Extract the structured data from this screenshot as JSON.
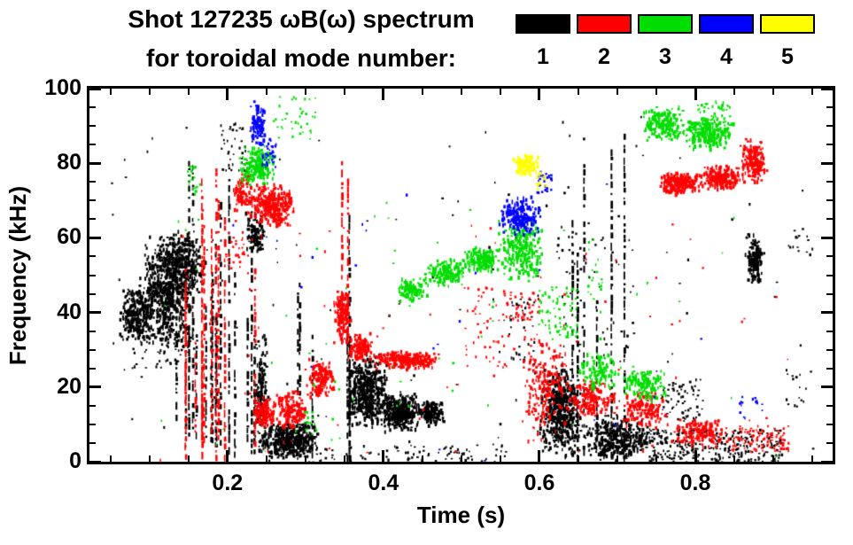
{
  "title": {
    "line1": "Shot 127235 ωB(ω) spectrum",
    "line2": "for toroidal mode number:"
  },
  "legend": {
    "items": [
      {
        "label": "1",
        "color": "#000000"
      },
      {
        "label": "2",
        "color": "#ff0000"
      },
      {
        "label": "3",
        "color": "#00dd00"
      },
      {
        "label": "4",
        "color": "#0000ff"
      },
      {
        "label": "5",
        "color": "#ffff00"
      }
    ]
  },
  "chart_data": {
    "type": "scatter",
    "subtype": "spectrogram-mode-scatter",
    "title": "Shot 127235 ωB(ω) spectrum for toroidal mode number 1-5",
    "xlabel": "Time (s)",
    "ylabel": "Frequency (kHz)",
    "xlim": [
      0.023,
      0.976
    ],
    "ylim": [
      0,
      100
    ],
    "xticks": [
      0.2,
      0.4,
      0.6,
      0.8
    ],
    "yticks": [
      0,
      20,
      40,
      60,
      80,
      100
    ],
    "xminor_step": 0.05,
    "yminor_step": 5,
    "grid": false,
    "legend_position": "top-right",
    "feature_format": "[type, t_start_s, t_end_s, f_low_kHz, f_high_kHz, n_points]; types: blob=center-weighted cluster, spray=uniform scatter, vlines=broadband vertical streaks",
    "series": [
      {
        "name": "n=1",
        "mode": 1,
        "color": "#000000",
        "features": [
          [
            "blob",
            0.06,
            0.105,
            32,
            48,
            260
          ],
          [
            "blob",
            0.085,
            0.155,
            30,
            62,
            560
          ],
          [
            "blob",
            0.105,
            0.175,
            44,
            63,
            300
          ],
          [
            "spray",
            0.075,
            0.16,
            25,
            36,
            80
          ],
          [
            "vlines",
            0.125,
            0.235,
            2,
            88,
            16
          ],
          [
            "spray",
            0.19,
            0.228,
            78,
            91,
            45
          ],
          [
            "blob",
            0.222,
            0.247,
            55,
            68,
            90
          ],
          [
            "blob",
            0.232,
            0.252,
            2,
            36,
            160
          ],
          [
            "blob",
            0.238,
            0.315,
            1,
            11,
            430
          ],
          [
            "vlines",
            0.283,
            0.308,
            0,
            64,
            3
          ],
          [
            "vlines",
            0.343,
            0.356,
            0,
            99,
            3
          ],
          [
            "blob",
            0.35,
            0.405,
            9,
            30,
            480
          ],
          [
            "blob",
            0.395,
            0.445,
            8,
            19,
            380
          ],
          [
            "blob",
            0.44,
            0.478,
            10,
            17,
            170
          ],
          [
            "spray",
            0.3,
            0.56,
            0,
            5,
            90
          ],
          [
            "spray",
            0.56,
            0.6,
            26,
            45,
            40
          ],
          [
            "vlines",
            0.6,
            0.72,
            0,
            95,
            6
          ],
          [
            "blob",
            0.598,
            0.655,
            1,
            27,
            500
          ],
          [
            "blob",
            0.65,
            0.745,
            0,
            13,
            350
          ],
          [
            "spray",
            0.62,
            0.72,
            30,
            62,
            50
          ],
          [
            "spray",
            0.74,
            0.91,
            0,
            9,
            320
          ],
          [
            "spray",
            0.755,
            0.81,
            11,
            23,
            70
          ],
          [
            "blob",
            0.862,
            0.888,
            47,
            62,
            150
          ],
          [
            "spray",
            0.915,
            0.95,
            15,
            25,
            15
          ],
          [
            "spray",
            0.915,
            0.95,
            55,
            63,
            15
          ],
          [
            "spray",
            0.05,
            0.95,
            0,
            97,
            130
          ]
        ]
      },
      {
        "name": "n=2",
        "mode": 2,
        "color": "#ff0000",
        "features": [
          [
            "vlines",
            0.135,
            0.255,
            0,
            87,
            12
          ],
          [
            "blob",
            0.205,
            0.23,
            66,
            78,
            90
          ],
          [
            "blob",
            0.225,
            0.285,
            63,
            75,
            340
          ],
          [
            "blob",
            0.232,
            0.262,
            9,
            18,
            130
          ],
          [
            "blob",
            0.258,
            0.302,
            9,
            20,
            150
          ],
          [
            "blob",
            0.298,
            0.338,
            17,
            28,
            150
          ],
          [
            "blob",
            0.335,
            0.358,
            32,
            48,
            140
          ],
          [
            "blob",
            0.352,
            0.388,
            27,
            35,
            130
          ],
          [
            "blob",
            0.385,
            0.472,
            25,
            30,
            260
          ],
          [
            "vlines",
            0.344,
            0.354,
            30,
            96,
            2
          ],
          [
            "spray",
            0.5,
            0.6,
            25,
            47,
            70
          ],
          [
            "spray",
            0.555,
            0.6,
            38,
            46,
            40
          ],
          [
            "blob",
            0.575,
            0.635,
            5,
            35,
            180
          ],
          [
            "blob",
            0.63,
            0.7,
            12,
            23,
            160
          ],
          [
            "blob",
            0.7,
            0.765,
            9,
            20,
            140
          ],
          [
            "blob",
            0.765,
            0.845,
            4,
            12,
            160
          ],
          [
            "spray",
            0.845,
            0.92,
            3,
            10,
            110
          ],
          [
            "blob",
            0.752,
            0.805,
            72,
            78,
            240
          ],
          [
            "blob",
            0.8,
            0.862,
            73,
            80,
            220
          ],
          [
            "blob",
            0.855,
            0.892,
            75,
            87,
            190
          ],
          [
            "spray",
            0.195,
            0.22,
            52,
            62,
            30
          ],
          [
            "spray",
            0.1,
            0.92,
            0,
            65,
            90
          ]
        ]
      },
      {
        "name": "n=3",
        "mode": 3,
        "color": "#00dd00",
        "features": [
          [
            "blob",
            0.213,
            0.262,
            74,
            85,
            210
          ],
          [
            "spray",
            0.258,
            0.312,
            86,
            98,
            40
          ],
          [
            "spray",
            0.148,
            0.165,
            72,
            80,
            20
          ],
          [
            "blob",
            0.415,
            0.455,
            43,
            50,
            110
          ],
          [
            "blob",
            0.45,
            0.505,
            47,
            55,
            160
          ],
          [
            "blob",
            0.5,
            0.548,
            51,
            58,
            170
          ],
          [
            "blob",
            0.545,
            0.605,
            48,
            66,
            260
          ],
          [
            "spray",
            0.598,
            0.648,
            33,
            47,
            80
          ],
          [
            "blob",
            0.645,
            0.705,
            19,
            30,
            110
          ],
          [
            "blob",
            0.7,
            0.765,
            16,
            27,
            130
          ],
          [
            "blob",
            0.728,
            0.785,
            86,
            96,
            170
          ],
          [
            "blob",
            0.78,
            0.848,
            84,
            93,
            230
          ],
          [
            "spray",
            0.8,
            0.845,
            90,
            97,
            60
          ],
          [
            "spray",
            0.295,
            0.315,
            8,
            14,
            15
          ],
          [
            "spray",
            0.66,
            0.68,
            40,
            60,
            20
          ],
          [
            "spray",
            0.1,
            0.92,
            0,
            70,
            60
          ]
        ]
      },
      {
        "name": "n=4",
        "mode": 4,
        "color": "#0000ff",
        "features": [
          [
            "blob",
            0.227,
            0.247,
            85,
            97,
            90
          ],
          [
            "spray",
            0.243,
            0.262,
            79,
            87,
            40
          ],
          [
            "blob",
            0.545,
            0.602,
            60,
            72,
            210
          ],
          [
            "spray",
            0.595,
            0.615,
            72,
            78,
            25
          ],
          [
            "spray",
            0.855,
            0.885,
            11,
            18,
            15
          ],
          [
            "spray",
            0.15,
            0.9,
            0,
            80,
            25
          ]
        ]
      },
      {
        "name": "n=5",
        "mode": 5,
        "color": "#ffff00",
        "features": [
          [
            "blob",
            0.565,
            0.598,
            77,
            83,
            120
          ],
          [
            "spray",
            0.594,
            0.608,
            73,
            78,
            20
          ]
        ]
      }
    ]
  }
}
